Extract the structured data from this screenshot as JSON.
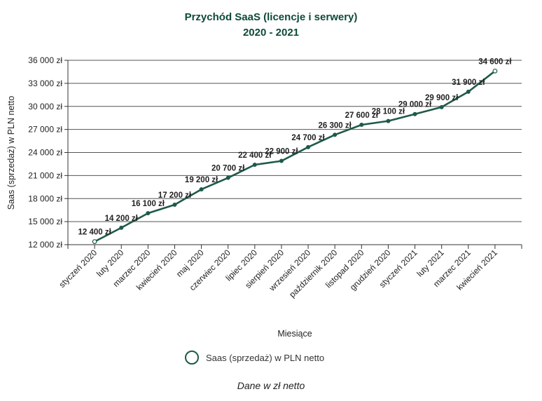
{
  "chart_data": {
    "type": "line",
    "title": "Przychód SaaS (licencje i serwery)",
    "subtitle": "2020 - 2021",
    "xlabel": "Miesiące",
    "ylabel": "Saas (sprzedaż) w PLN netto",
    "categories": [
      "styczeń 2020",
      "luty 2020",
      "marzec 2020",
      "kwiecień 2020",
      "maj 2020",
      "czerwiec 2020",
      "lipiec 2020",
      "sierpień 2020",
      "wrzesień 2020",
      "październik 2020",
      "listopad 2020",
      "grudzień 2020",
      "styczeń 2021",
      "luty 2021",
      "marzec 2021",
      "kwiecień 2021"
    ],
    "series": [
      {
        "name": "Saas (sprzedaż) w PLN netto",
        "values": [
          12400,
          14200,
          16100,
          17200,
          19200,
          20700,
          22400,
          22900,
          24700,
          26300,
          27600,
          28100,
          29000,
          29900,
          31900,
          34600
        ],
        "data_labels": [
          "12 400 zł",
          "14 200 zł",
          "16 100 zł",
          "17 200 zł",
          "19 200 zł",
          "20 700 zł",
          "22 400 zł",
          "22 900 zł",
          "24 700 zł",
          "26 300 zł",
          "27 600 zł",
          "28 100 zł",
          "29 000 zł",
          "29 900 zł",
          "31 900 zł",
          "34 600 zł"
        ]
      }
    ],
    "ylim": [
      12000,
      36000
    ],
    "yticks": [
      12000,
      15000,
      18000,
      21000,
      24000,
      27000,
      30000,
      33000,
      36000
    ],
    "ytick_labels": [
      "12 000 zł",
      "15 000 zł",
      "18 000 zł",
      "21 000 zł",
      "24 000 zł",
      "27 000 zł",
      "30 000 zł",
      "33 000 zł",
      "36 000 zł"
    ],
    "grid": true,
    "legend_position": "bottom",
    "line_color": "#1d5a4a"
  },
  "caption": "Dane w zł netto"
}
